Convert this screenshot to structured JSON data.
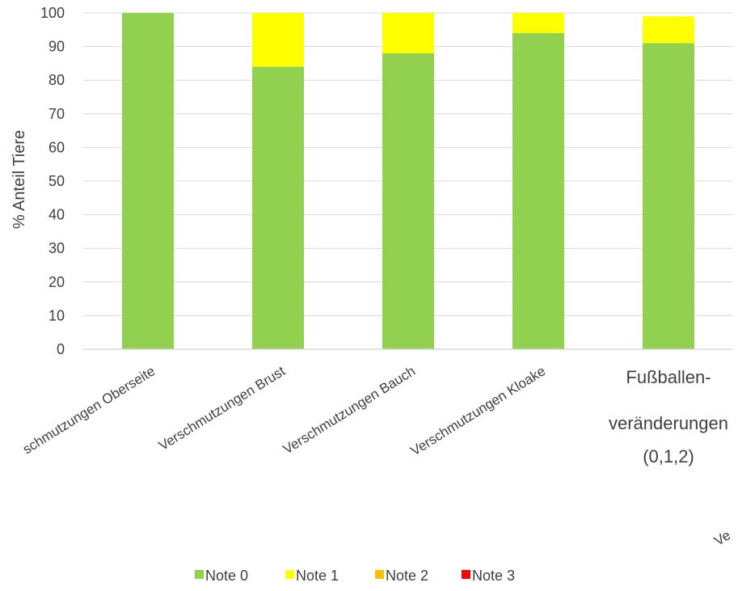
{
  "chart_data": {
    "type": "bar",
    "stacked": true,
    "ylabel": "% Anteil Tiere",
    "ylim": [
      0,
      100
    ],
    "yticks": [
      0,
      10,
      20,
      30,
      40,
      50,
      60,
      70,
      80,
      90,
      100
    ],
    "grid": true,
    "legend_position": "bottom",
    "categories": [
      "Verschmutzungen Oberseite",
      "Verschmutzungen Brust",
      "Verschmutzungen Bauch",
      "Verschmutzungen Kloake",
      "Fußballen-veränderungen (0,1,2)"
    ],
    "category_label_visible": [
      "schmutzungen Oberseite",
      "Verschmutzungen Brust",
      "Verschmutzungen Bauch",
      "Verschmutzungen Kloake",
      [
        "Fußballen-",
        "veränderungen",
        "(0,1,2)"
      ]
    ],
    "clipped_label_fragment": "Ve",
    "series": [
      {
        "name": "Note 0",
        "color": "#92d050",
        "values": [
          100,
          84,
          88,
          94,
          91
        ]
      },
      {
        "name": "Note 1",
        "color": "#ffff00",
        "values": [
          0,
          16,
          12,
          6,
          8
        ]
      },
      {
        "name": "Note 2",
        "color": "#ffc000",
        "values": [
          0,
          0,
          0,
          0,
          0
        ]
      },
      {
        "name": "Note 3",
        "color": "#ff0000",
        "values": [
          0,
          0,
          0,
          0,
          0
        ]
      }
    ]
  }
}
